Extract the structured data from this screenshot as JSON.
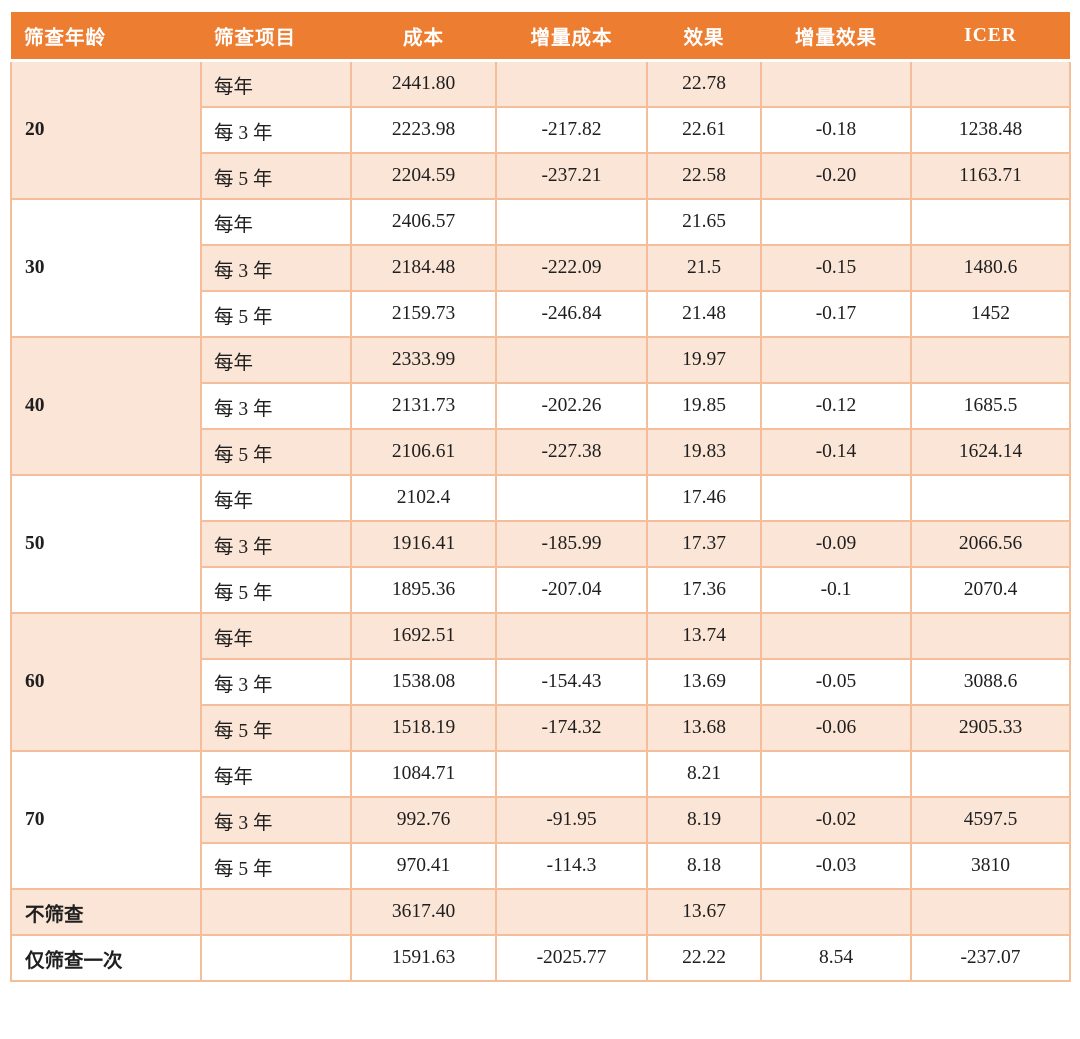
{
  "colors": {
    "header_bg": "#ED7D31",
    "header_text": "#FFFFFF",
    "band_peach": "#FBE5D6",
    "border": "#F4BE9B",
    "body_text": "#1F1F1F"
  },
  "table": {
    "headers": [
      "筛查年龄",
      "筛查项目",
      "成本",
      "增量成本",
      "效果",
      "增量效果",
      "ICER"
    ],
    "groups": [
      {
        "age": "20",
        "rows": [
          {
            "item": "每年",
            "cost": "2441.80",
            "inc_cost": "",
            "effect": "22.78",
            "inc_effect": "",
            "icer": ""
          },
          {
            "item": "每 3 年",
            "cost": "2223.98",
            "inc_cost": "-217.82",
            "effect": "22.61",
            "inc_effect": "-0.18",
            "icer": "1238.48"
          },
          {
            "item": "每 5 年",
            "cost": "2204.59",
            "inc_cost": "-237.21",
            "effect": "22.58",
            "inc_effect": "-0.20",
            "icer": "1163.71"
          }
        ]
      },
      {
        "age": "30",
        "rows": [
          {
            "item": "每年",
            "cost": "2406.57",
            "inc_cost": "",
            "effect": "21.65",
            "inc_effect": "",
            "icer": ""
          },
          {
            "item": "每 3 年",
            "cost": "2184.48",
            "inc_cost": "-222.09",
            "effect": "21.5",
            "inc_effect": "-0.15",
            "icer": "1480.6"
          },
          {
            "item": "每 5 年",
            "cost": "2159.73",
            "inc_cost": "-246.84",
            "effect": "21.48",
            "inc_effect": "-0.17",
            "icer": "1452"
          }
        ]
      },
      {
        "age": "40",
        "rows": [
          {
            "item": "每年",
            "cost": "2333.99",
            "inc_cost": "",
            "effect": "19.97",
            "inc_effect": "",
            "icer": ""
          },
          {
            "item": "每 3 年",
            "cost": "2131.73",
            "inc_cost": "-202.26",
            "effect": "19.85",
            "inc_effect": "-0.12",
            "icer": "1685.5"
          },
          {
            "item": "每 5 年",
            "cost": "2106.61",
            "inc_cost": "-227.38",
            "effect": "19.83",
            "inc_effect": "-0.14",
            "icer": "1624.14"
          }
        ]
      },
      {
        "age": "50",
        "rows": [
          {
            "item": "每年",
            "cost": "2102.4",
            "inc_cost": "",
            "effect": "17.46",
            "inc_effect": "",
            "icer": ""
          },
          {
            "item": "每 3 年",
            "cost": "1916.41",
            "inc_cost": "-185.99",
            "effect": "17.37",
            "inc_effect": "-0.09",
            "icer": "2066.56"
          },
          {
            "item": "每 5 年",
            "cost": "1895.36",
            "inc_cost": "-207.04",
            "effect": "17.36",
            "inc_effect": "-0.1",
            "icer": "2070.4"
          }
        ]
      },
      {
        "age": "60",
        "rows": [
          {
            "item": "每年",
            "cost": "1692.51",
            "inc_cost": "",
            "effect": "13.74",
            "inc_effect": "",
            "icer": ""
          },
          {
            "item": "每 3 年",
            "cost": "1538.08",
            "inc_cost": "-154.43",
            "effect": "13.69",
            "inc_effect": "-0.05",
            "icer": "3088.6"
          },
          {
            "item": "每 5 年",
            "cost": "1518.19",
            "inc_cost": "-174.32",
            "effect": "13.68",
            "inc_effect": "-0.06",
            "icer": "2905.33"
          }
        ]
      },
      {
        "age": "70",
        "rows": [
          {
            "item": "每年",
            "cost": "1084.71",
            "inc_cost": "",
            "effect": "8.21",
            "inc_effect": "",
            "icer": ""
          },
          {
            "item": "每 3 年",
            "cost": "992.76",
            "inc_cost": "-91.95",
            "effect": "8.19",
            "inc_effect": "-0.02",
            "icer": "4597.5"
          },
          {
            "item": "每 5 年",
            "cost": "970.41",
            "inc_cost": "-114.3",
            "effect": "8.18",
            "inc_effect": "-0.03",
            "icer": "3810"
          }
        ]
      }
    ],
    "extra_rows": [
      {
        "age": "不筛查",
        "item": "",
        "cost": "3617.40",
        "inc_cost": "",
        "effect": "13.67",
        "inc_effect": "",
        "icer": ""
      },
      {
        "age": "仅筛查一次",
        "item": "",
        "cost": "1591.63",
        "inc_cost": "-2025.77",
        "effect": "22.22",
        "inc_effect": "8.54",
        "icer": "-237.07"
      }
    ]
  }
}
